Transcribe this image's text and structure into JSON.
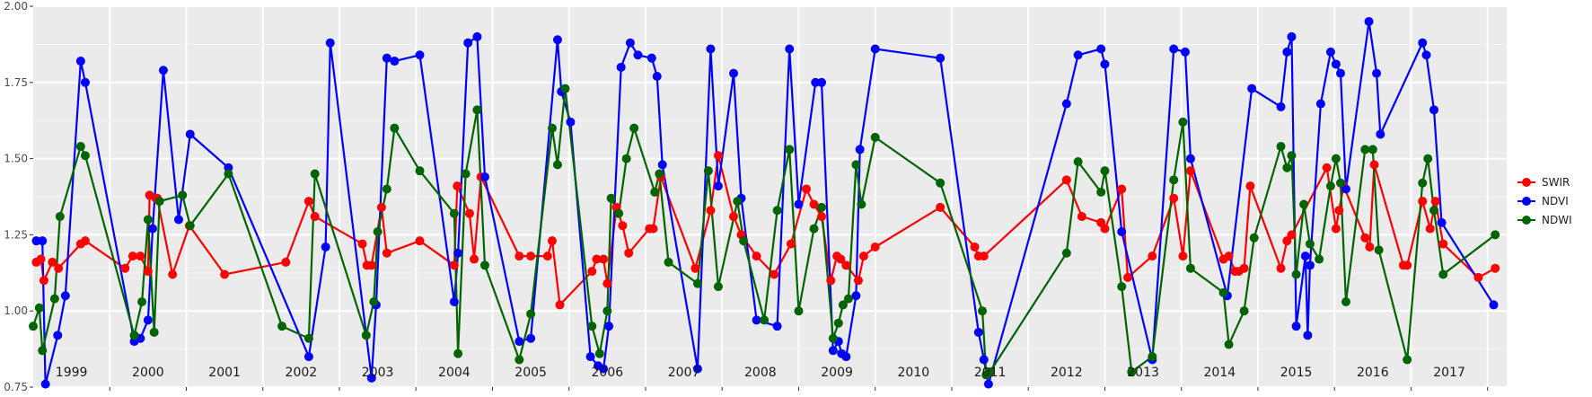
{
  "chart_data": {
    "type": "line",
    "title": "",
    "xlabel": "",
    "ylabel": "",
    "xlim": [
      1999.0,
      2018.0
    ],
    "ylim": [
      0.75,
      2.0
    ],
    "yticks": [
      "0.75",
      "1.00",
      "1.25",
      "1.50",
      "1.75",
      "2.00"
    ],
    "year_labels": [
      "1999",
      "2000",
      "2001",
      "2002",
      "2003",
      "2004",
      "2005",
      "2006",
      "2007",
      "2008",
      "2009",
      "2010",
      "2011",
      "2012",
      "2013",
      "2014",
      "2015",
      "2016",
      "2017"
    ],
    "grid": true,
    "legend_position": "right",
    "series": [
      {
        "name": "SWIR",
        "color": "#ff0000",
        "points": [
          [
            1999.04,
            1.16
          ],
          [
            1999.1,
            1.17
          ],
          [
            1999.14,
            1.1
          ],
          [
            1999.25,
            1.16
          ],
          [
            1999.33,
            1.14
          ],
          [
            1999.62,
            1.22
          ],
          [
            1999.68,
            1.23
          ],
          [
            2000.2,
            1.14
          ],
          [
            2000.3,
            1.18
          ],
          [
            2000.4,
            1.18
          ],
          [
            2000.5,
            1.13
          ],
          [
            2000.52,
            1.38
          ],
          [
            2000.6,
            1.37
          ],
          [
            2000.62,
            1.37
          ],
          [
            2000.82,
            1.12
          ],
          [
            2001.04,
            1.28
          ],
          [
            2001.5,
            1.12
          ],
          [
            2002.3,
            1.16
          ],
          [
            2002.6,
            1.36
          ],
          [
            2002.68,
            1.31
          ],
          [
            2003.3,
            1.22
          ],
          [
            2003.36,
            1.15
          ],
          [
            2003.42,
            1.15
          ],
          [
            2003.55,
            1.34
          ],
          [
            2003.62,
            1.19
          ],
          [
            2004.05,
            1.23
          ],
          [
            2004.5,
            1.15
          ],
          [
            2004.54,
            1.41
          ],
          [
            2004.7,
            1.32
          ],
          [
            2004.76,
            1.17
          ],
          [
            2004.85,
            1.44
          ],
          [
            2005.35,
            1.18
          ],
          [
            2005.5,
            1.18
          ],
          [
            2005.72,
            1.18
          ],
          [
            2005.78,
            1.23
          ],
          [
            2005.88,
            1.02
          ],
          [
            2006.3,
            1.13
          ],
          [
            2006.36,
            1.17
          ],
          [
            2006.45,
            1.17
          ],
          [
            2006.5,
            1.09
          ],
          [
            2006.62,
            1.34
          ],
          [
            2006.7,
            1.28
          ],
          [
            2006.78,
            1.19
          ],
          [
            2007.05,
            1.27
          ],
          [
            2007.1,
            1.27
          ],
          [
            2007.2,
            1.44
          ],
          [
            2007.65,
            1.14
          ],
          [
            2007.85,
            1.33
          ],
          [
            2007.95,
            1.51
          ],
          [
            2008.15,
            1.31
          ],
          [
            2008.25,
            1.25
          ],
          [
            2008.45,
            1.18
          ],
          [
            2008.68,
            1.12
          ],
          [
            2008.9,
            1.22
          ],
          [
            2009.1,
            1.4
          ],
          [
            2009.2,
            1.35
          ],
          [
            2009.3,
            1.31
          ],
          [
            2009.42,
            1.1
          ],
          [
            2009.5,
            1.18
          ],
          [
            2009.55,
            1.17
          ],
          [
            2009.62,
            1.15
          ],
          [
            2009.78,
            1.1
          ],
          [
            2009.85,
            1.18
          ],
          [
            2010.0,
            1.21
          ],
          [
            2010.85,
            1.34
          ],
          [
            2011.3,
            1.21
          ],
          [
            2011.35,
            1.18
          ],
          [
            2011.42,
            1.18
          ],
          [
            2012.5,
            1.43
          ],
          [
            2012.7,
            1.31
          ],
          [
            2012.95,
            1.29
          ],
          [
            2013.0,
            1.27
          ],
          [
            2013.22,
            1.4
          ],
          [
            2013.3,
            1.11
          ],
          [
            2013.62,
            1.18
          ],
          [
            2013.9,
            1.37
          ],
          [
            2014.02,
            1.18
          ],
          [
            2014.12,
            1.46
          ],
          [
            2014.55,
            1.17
          ],
          [
            2014.62,
            1.18
          ],
          [
            2014.7,
            1.13
          ],
          [
            2014.75,
            1.13
          ],
          [
            2014.82,
            1.14
          ],
          [
            2014.9,
            1.41
          ],
          [
            2015.3,
            1.14
          ],
          [
            2015.38,
            1.23
          ],
          [
            2015.44,
            1.25
          ],
          [
            2015.9,
            1.47
          ],
          [
            2016.02,
            1.27
          ],
          [
            2016.06,
            1.33
          ],
          [
            2016.12,
            1.41
          ],
          [
            2016.4,
            1.24
          ],
          [
            2016.46,
            1.21
          ],
          [
            2016.52,
            1.48
          ],
          [
            2016.9,
            1.15
          ],
          [
            2016.95,
            1.15
          ],
          [
            2017.15,
            1.36
          ],
          [
            2017.25,
            1.27
          ],
          [
            2017.32,
            1.36
          ],
          [
            2017.42,
            1.22
          ],
          [
            2017.88,
            1.11
          ],
          [
            2018.1,
            1.14
          ]
        ]
      },
      {
        "name": "NDVI",
        "color": "#0000ff",
        "points": [
          [
            1999.04,
            1.23
          ],
          [
            1999.12,
            1.23
          ],
          [
            1999.16,
            0.76
          ],
          [
            1999.32,
            0.92
          ],
          [
            1999.42,
            1.05
          ],
          [
            1999.62,
            1.82
          ],
          [
            1999.68,
            1.75
          ],
          [
            2000.32,
            0.9
          ],
          [
            2000.4,
            0.91
          ],
          [
            2000.5,
            0.97
          ],
          [
            2000.56,
            1.27
          ],
          [
            2000.7,
            1.79
          ],
          [
            2000.9,
            1.3
          ],
          [
            2001.05,
            1.58
          ],
          [
            2001.55,
            1.47
          ],
          [
            2002.6,
            0.85
          ],
          [
            2002.82,
            1.21
          ],
          [
            2002.88,
            1.88
          ],
          [
            2003.42,
            0.78
          ],
          [
            2003.48,
            1.02
          ],
          [
            2003.62,
            1.83
          ],
          [
            2003.72,
            1.82
          ],
          [
            2004.05,
            1.84
          ],
          [
            2004.5,
            1.03
          ],
          [
            2004.55,
            1.19
          ],
          [
            2004.68,
            1.88
          ],
          [
            2004.8,
            1.9
          ],
          [
            2004.9,
            1.44
          ],
          [
            2005.35,
            0.9
          ],
          [
            2005.5,
            0.91
          ],
          [
            2005.85,
            1.89
          ],
          [
            2005.9,
            1.72
          ],
          [
            2006.02,
            1.62
          ],
          [
            2006.28,
            0.85
          ],
          [
            2006.38,
            0.82
          ],
          [
            2006.45,
            0.81
          ],
          [
            2006.52,
            0.95
          ],
          [
            2006.68,
            1.8
          ],
          [
            2006.8,
            1.88
          ],
          [
            2006.9,
            1.84
          ],
          [
            2007.08,
            1.83
          ],
          [
            2007.15,
            1.77
          ],
          [
            2007.22,
            1.48
          ],
          [
            2007.68,
            0.81
          ],
          [
            2007.85,
            1.86
          ],
          [
            2007.95,
            1.41
          ],
          [
            2008.15,
            1.78
          ],
          [
            2008.25,
            1.37
          ],
          [
            2008.45,
            0.97
          ],
          [
            2008.72,
            0.95
          ],
          [
            2008.88,
            1.86
          ],
          [
            2009.0,
            1.35
          ],
          [
            2009.22,
            1.75
          ],
          [
            2009.3,
            1.75
          ],
          [
            2009.45,
            0.87
          ],
          [
            2009.52,
            0.9
          ],
          [
            2009.56,
            0.86
          ],
          [
            2009.62,
            0.85
          ],
          [
            2009.75,
            1.05
          ],
          [
            2009.8,
            1.53
          ],
          [
            2010.0,
            1.86
          ],
          [
            2010.85,
            1.83
          ],
          [
            2011.35,
            0.93
          ],
          [
            2011.42,
            0.84
          ],
          [
            2011.48,
            0.76
          ],
          [
            2012.5,
            1.68
          ],
          [
            2012.65,
            1.84
          ],
          [
            2012.95,
            1.86
          ],
          [
            2013.0,
            1.81
          ],
          [
            2013.22,
            1.26
          ],
          [
            2013.62,
            0.84
          ],
          [
            2013.9,
            1.86
          ],
          [
            2014.05,
            1.85
          ],
          [
            2014.12,
            1.5
          ],
          [
            2014.6,
            1.05
          ],
          [
            2014.92,
            1.73
          ],
          [
            2015.3,
            1.67
          ],
          [
            2015.38,
            1.85
          ],
          [
            2015.44,
            1.9
          ],
          [
            2015.5,
            0.95
          ],
          [
            2015.62,
            1.18
          ],
          [
            2015.65,
            0.92
          ],
          [
            2015.68,
            1.15
          ],
          [
            2015.82,
            1.68
          ],
          [
            2015.95,
            1.85
          ],
          [
            2016.02,
            1.81
          ],
          [
            2016.08,
            1.78
          ],
          [
            2016.15,
            1.4
          ],
          [
            2016.45,
            1.95
          ],
          [
            2016.55,
            1.78
          ],
          [
            2016.6,
            1.58
          ],
          [
            2017.15,
            1.88
          ],
          [
            2017.2,
            1.84
          ],
          [
            2017.3,
            1.66
          ],
          [
            2017.4,
            1.29
          ],
          [
            2018.08,
            1.02
          ]
        ]
      },
      {
        "name": "NDWI",
        "color": "#006400",
        "points": [
          [
            1999.0,
            0.95
          ],
          [
            1999.08,
            1.01
          ],
          [
            1999.12,
            0.87
          ],
          [
            1999.28,
            1.04
          ],
          [
            1999.35,
            1.31
          ],
          [
            1999.62,
            1.54
          ],
          [
            1999.68,
            1.51
          ],
          [
            2000.32,
            0.92
          ],
          [
            2000.42,
            1.03
          ],
          [
            2000.5,
            1.3
          ],
          [
            2000.58,
            0.93
          ],
          [
            2000.65,
            1.36
          ],
          [
            2000.95,
            1.38
          ],
          [
            2001.05,
            1.28
          ],
          [
            2001.55,
            1.45
          ],
          [
            2002.25,
            0.95
          ],
          [
            2002.6,
            0.91
          ],
          [
            2002.68,
            1.45
          ],
          [
            2003.35,
            0.92
          ],
          [
            2003.45,
            1.03
          ],
          [
            2003.5,
            1.26
          ],
          [
            2003.62,
            1.4
          ],
          [
            2003.72,
            1.6
          ],
          [
            2004.05,
            1.46
          ],
          [
            2004.5,
            1.32
          ],
          [
            2004.55,
            0.86
          ],
          [
            2004.65,
            1.45
          ],
          [
            2004.8,
            1.66
          ],
          [
            2004.9,
            1.15
          ],
          [
            2005.35,
            0.84
          ],
          [
            2005.5,
            0.99
          ],
          [
            2005.78,
            1.6
          ],
          [
            2005.85,
            1.48
          ],
          [
            2005.95,
            1.73
          ],
          [
            2006.3,
            0.95
          ],
          [
            2006.4,
            0.86
          ],
          [
            2006.5,
            1.0
          ],
          [
            2006.55,
            1.37
          ],
          [
            2006.65,
            1.32
          ],
          [
            2006.75,
            1.5
          ],
          [
            2006.85,
            1.6
          ],
          [
            2007.12,
            1.39
          ],
          [
            2007.18,
            1.45
          ],
          [
            2007.3,
            1.16
          ],
          [
            2007.68,
            1.09
          ],
          [
            2007.82,
            1.46
          ],
          [
            2007.95,
            1.08
          ],
          [
            2008.2,
            1.36
          ],
          [
            2008.28,
            1.23
          ],
          [
            2008.55,
            0.97
          ],
          [
            2008.72,
            1.33
          ],
          [
            2008.88,
            1.53
          ],
          [
            2009.0,
            1.0
          ],
          [
            2009.2,
            1.27
          ],
          [
            2009.3,
            1.34
          ],
          [
            2009.45,
            0.91
          ],
          [
            2009.52,
            0.96
          ],
          [
            2009.58,
            1.02
          ],
          [
            2009.65,
            1.04
          ],
          [
            2009.75,
            1.48
          ],
          [
            2009.82,
            1.35
          ],
          [
            2010.0,
            1.57
          ],
          [
            2010.85,
            1.42
          ],
          [
            2011.4,
            1.0
          ],
          [
            2011.45,
            0.79
          ],
          [
            2011.5,
            0.8
          ],
          [
            2012.5,
            1.19
          ],
          [
            2012.65,
            1.49
          ],
          [
            2012.95,
            1.39
          ],
          [
            2013.0,
            1.46
          ],
          [
            2013.22,
            1.08
          ],
          [
            2013.35,
            0.8
          ],
          [
            2013.62,
            0.85
          ],
          [
            2013.9,
            1.43
          ],
          [
            2014.02,
            1.62
          ],
          [
            2014.12,
            1.14
          ],
          [
            2014.55,
            1.06
          ],
          [
            2014.62,
            0.89
          ],
          [
            2014.82,
            1.0
          ],
          [
            2014.95,
            1.24
          ],
          [
            2015.3,
            1.54
          ],
          [
            2015.38,
            1.47
          ],
          [
            2015.44,
            1.51
          ],
          [
            2015.5,
            1.12
          ],
          [
            2015.6,
            1.35
          ],
          [
            2015.68,
            1.22
          ],
          [
            2015.8,
            1.17
          ],
          [
            2015.95,
            1.41
          ],
          [
            2016.02,
            1.5
          ],
          [
            2016.08,
            1.42
          ],
          [
            2016.15,
            1.03
          ],
          [
            2016.4,
            1.53
          ],
          [
            2016.5,
            1.53
          ],
          [
            2016.58,
            1.2
          ],
          [
            2016.95,
            0.84
          ],
          [
            2017.15,
            1.42
          ],
          [
            2017.22,
            1.5
          ],
          [
            2017.3,
            1.33
          ],
          [
            2017.42,
            1.12
          ],
          [
            2018.1,
            1.25
          ]
        ]
      }
    ]
  }
}
